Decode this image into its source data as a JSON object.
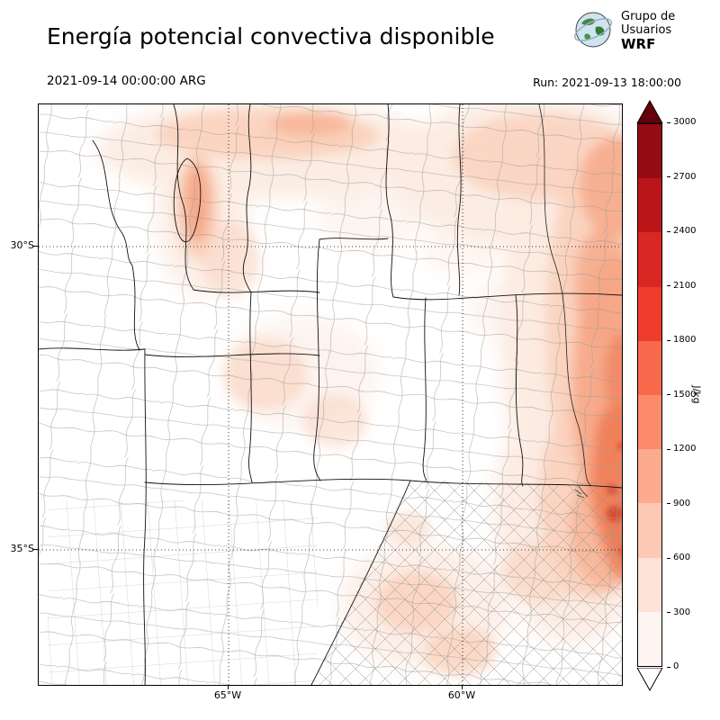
{
  "header": {
    "title": "Energía potencial convectiva disponible",
    "logo": {
      "line1": "Grupo de",
      "line2": "Usuarios",
      "line3": "WRF"
    }
  },
  "timebar": {
    "valid_time": "2021-09-14 00:00:00 ARG",
    "run": "Run: 2021-09-13 18:00:00"
  },
  "map": {
    "lat_labels": [
      "30°S",
      "35°S"
    ],
    "lon_labels": [
      "65°W",
      "60°W"
    ]
  },
  "colorbar": {
    "unit": "J/kg",
    "ticks_top_to_bottom": [
      "3000",
      "2700",
      "2400",
      "2100",
      "1800",
      "1500",
      "1200",
      "900",
      "600",
      "300",
      "0"
    ],
    "colors_low_to_high": [
      "#fff5f0",
      "#fee3d7",
      "#fdc9b4",
      "#fcab8f",
      "#fc8b6b",
      "#f9694c",
      "#ef3c2c",
      "#d92723",
      "#bb151a",
      "#970b13"
    ],
    "arrow_high_color": "#67000d",
    "arrow_low_color": "#ffffff"
  },
  "chart_data": {
    "type": "heatmap",
    "title": "Energía potencial convectiva disponible",
    "units": "J/kg",
    "valid_time": "2021-09-14 00:00:00 ARG",
    "run": "Run: 2021-09-13 18:00:00",
    "colorbar_ticks": [
      0,
      300,
      600,
      900,
      1200,
      1500,
      1800,
      2100,
      2400,
      2700,
      3000
    ],
    "lat_gridlines": [
      "30°S",
      "35°S"
    ],
    "lon_gridlines": [
      "65°W",
      "60°W"
    ],
    "legend_position": "right",
    "notes_visible_pattern": "highest CAPE shading along eastern edge of map, light shading north and center, mostly zero in west and southwest"
  }
}
